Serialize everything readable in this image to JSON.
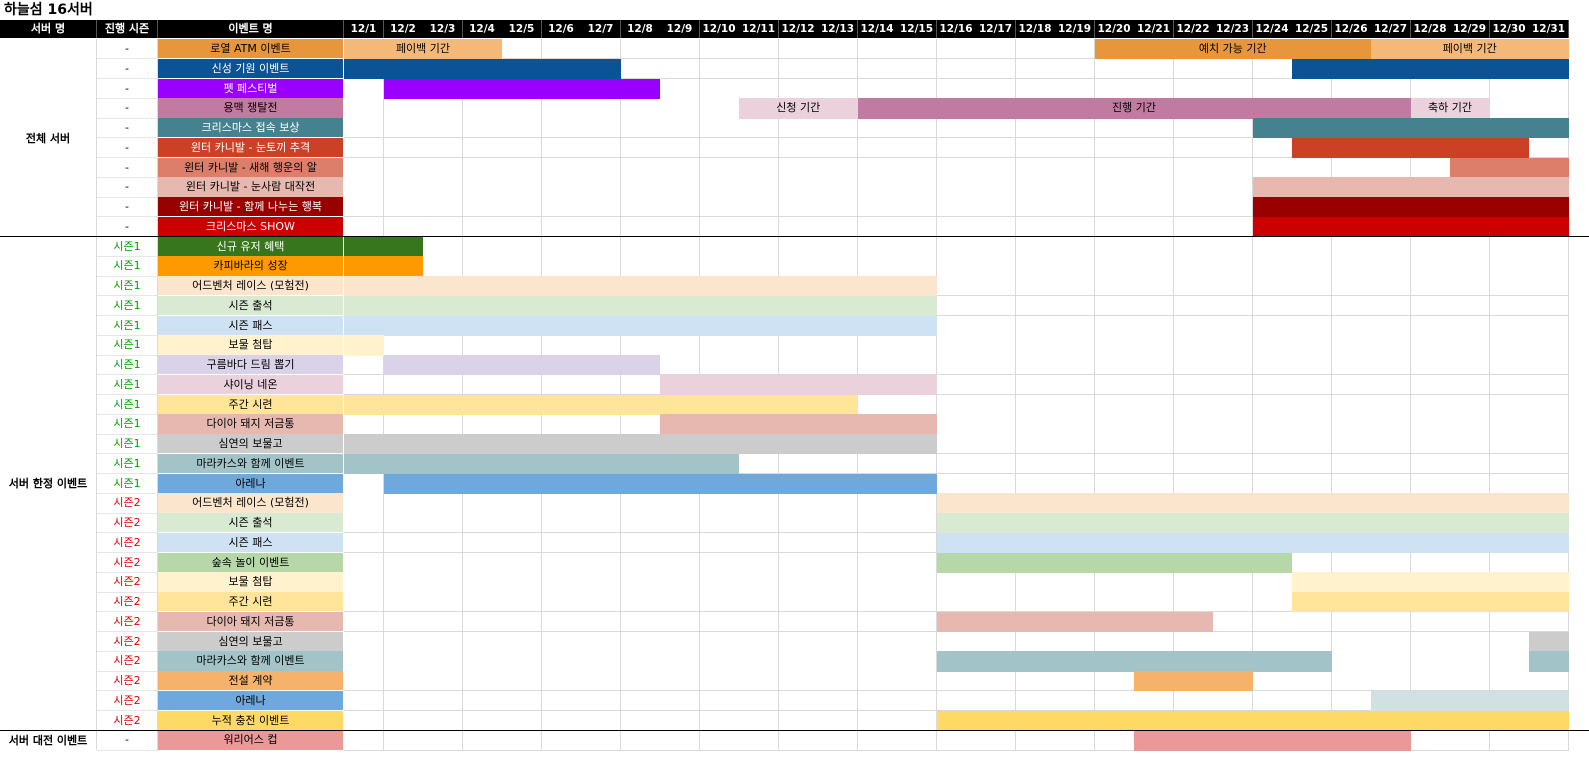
{
  "title": "하늘섬 16서버",
  "headers": {
    "server": "서버 명",
    "season": "진행 시즌",
    "event": "이벤트 명"
  },
  "dates": [
    "12/1",
    "12/2",
    "12/3",
    "12/4",
    "12/5",
    "12/6",
    "12/7",
    "12/8",
    "12/9",
    "12/10",
    "12/11",
    "12/12",
    "12/13",
    "12/14",
    "12/15",
    "12/16",
    "12/17",
    "12/18",
    "12/19",
    "12/20",
    "12/21",
    "12/22",
    "12/23",
    "12/24",
    "12/25",
    "12/26",
    "12/27",
    "12/28",
    "12/29",
    "12/30",
    "12/31"
  ],
  "groups": [
    {
      "label": "전체 서버",
      "first": 0,
      "last": 9
    },
    {
      "label": "서버 한정 이벤트",
      "first": 10,
      "last": 34
    },
    {
      "label": "서버 대전 이벤트",
      "first": 35,
      "last": 35
    }
  ],
  "season_colors": {
    "시즌1": "#00a000",
    "시즌2": "#e00000",
    "-": "#000000"
  },
  "rows": [
    {
      "season": "-",
      "name": "로열 ATM 이벤트",
      "color": "#e8963c",
      "text": "#000",
      "bars": [
        {
          "start": 1,
          "end": 4,
          "color": "#f4b979",
          "label": "페이백 기간"
        },
        {
          "start": 20,
          "end": 26,
          "color": "#e8963c",
          "label": "예치 가능 기간"
        },
        {
          "start": 27,
          "end": 31,
          "color": "#f4b979",
          "label": "페이백 기간"
        }
      ]
    },
    {
      "season": "-",
      "name": "신성 기원 이벤트",
      "color": "#0b5394",
      "text": "#fff",
      "bars": [
        {
          "start": 1,
          "end": 7,
          "color": "#0b5394",
          "label": ""
        },
        {
          "start": 25,
          "end": 31,
          "color": "#0b5394",
          "label": ""
        }
      ]
    },
    {
      "season": "-",
      "name": "펫 페스티벌",
      "color": "#9900ff",
      "text": "#fff",
      "bars": [
        {
          "start": 2,
          "end": 8,
          "color": "#9900ff",
          "label": ""
        }
      ]
    },
    {
      "season": "-",
      "name": "용맥 쟁탈전",
      "color": "#c27ba0",
      "text": "#000",
      "bars": [
        {
          "start": 11,
          "end": 13,
          "color": "#ead1dc",
          "label": "신청 기간"
        },
        {
          "start": 14,
          "end": 27,
          "color": "#c27ba0",
          "label": "진행 기간"
        },
        {
          "start": 28,
          "end": 29,
          "color": "#ead1dc",
          "label": "축하 기간"
        }
      ]
    },
    {
      "season": "-",
      "name": "크리스마스 접속 보상",
      "color": "#45818e",
      "text": "#fff",
      "bars": [
        {
          "start": 24,
          "end": 31,
          "color": "#45818e",
          "label": ""
        }
      ]
    },
    {
      "season": "-",
      "name": "윈터 카니발 - 눈토끼 추격",
      "color": "#cc4125",
      "text": "#fff",
      "bars": [
        {
          "start": 25,
          "end": 30,
          "color": "#cc4125",
          "label": ""
        }
      ]
    },
    {
      "season": "-",
      "name": "윈터 카니발 - 새해 행운의 알",
      "color": "#dd7e6b",
      "text": "#000",
      "bars": [
        {
          "start": 29,
          "end": 31,
          "color": "#dd7e6b",
          "label": ""
        }
      ]
    },
    {
      "season": "-",
      "name": "윈터 카니발 - 눈사람 대작전",
      "color": "#e6b8af",
      "text": "#000",
      "bars": [
        {
          "start": 24,
          "end": 31,
          "color": "#e6b8af",
          "label": ""
        }
      ]
    },
    {
      "season": "-",
      "name": "윈터 카니발 - 함께 나누는 행복",
      "color": "#990000",
      "text": "#fff",
      "bars": [
        {
          "start": 24,
          "end": 31,
          "color": "#990000",
          "label": ""
        }
      ]
    },
    {
      "season": "-",
      "name": "크리스마스 SHOW",
      "color": "#cc0000",
      "text": "#fff",
      "bars": [
        {
          "start": 24,
          "end": 31,
          "color": "#cc0000",
          "label": ""
        }
      ]
    },
    {
      "season": "시즌1",
      "name": "신규 유저 혜택",
      "color": "#38761d",
      "text": "#fff",
      "bars": [
        {
          "start": 1,
          "end": 2,
          "color": "#38761d",
          "label": ""
        }
      ]
    },
    {
      "season": "시즌1",
      "name": "카피바라의 성장",
      "color": "#ff9900",
      "text": "#000",
      "bars": [
        {
          "start": 1,
          "end": 2,
          "color": "#ff9900",
          "label": ""
        }
      ]
    },
    {
      "season": "시즌1",
      "name": "어드벤처 레이스 (모험전)",
      "color": "#fce5cd",
      "text": "#000",
      "bars": [
        {
          "start": 1,
          "end": 15,
          "color": "#fce5cd",
          "label": ""
        }
      ]
    },
    {
      "season": "시즌1",
      "name": "시즌 출석",
      "color": "#d9ead3",
      "text": "#000",
      "bars": [
        {
          "start": 1,
          "end": 15,
          "color": "#d9ead3",
          "label": ""
        }
      ]
    },
    {
      "season": "시즌1",
      "name": "시즌 패스",
      "color": "#cfe2f3",
      "text": "#000",
      "bars": [
        {
          "start": 1,
          "end": 15,
          "color": "#cfe2f3",
          "label": ""
        }
      ]
    },
    {
      "season": "시즌1",
      "name": "보물 첨탑",
      "color": "#fff2cc",
      "text": "#000",
      "bars": [
        {
          "start": 1,
          "end": 1,
          "color": "#fff2cc",
          "label": ""
        }
      ]
    },
    {
      "season": "시즌1",
      "name": "구름바다 드림 뽑기",
      "color": "#d9d2e9",
      "text": "#000",
      "bars": [
        {
          "start": 2,
          "end": 8,
          "color": "#d9d2e9",
          "label": ""
        }
      ]
    },
    {
      "season": "시즌1",
      "name": "샤이닝 네온",
      "color": "#ead1dc",
      "text": "#000",
      "bars": [
        {
          "start": 9,
          "end": 15,
          "color": "#ead1dc",
          "label": ""
        }
      ]
    },
    {
      "season": "시즌1",
      "name": "주간 시련",
      "color": "#ffe599",
      "text": "#000",
      "bars": [
        {
          "start": 1,
          "end": 13,
          "color": "#ffe599",
          "label": ""
        }
      ]
    },
    {
      "season": "시즌1",
      "name": "다이아 돼지 저금통",
      "color": "#e6b8af",
      "text": "#000",
      "bars": [
        {
          "start": 9,
          "end": 15,
          "color": "#e6b8af",
          "label": ""
        }
      ]
    },
    {
      "season": "시즌1",
      "name": "심연의 보물고",
      "color": "#cccccc",
      "text": "#000",
      "bars": [
        {
          "start": 1,
          "end": 15,
          "color": "#cccccc",
          "label": ""
        }
      ]
    },
    {
      "season": "시즌1",
      "name": "마라카스와 함께 이벤트",
      "color": "#a2c4c9",
      "text": "#000",
      "bars": [
        {
          "start": 1,
          "end": 10,
          "color": "#a2c4c9",
          "label": ""
        }
      ]
    },
    {
      "season": "시즌1",
      "name": "아레나",
      "color": "#6fa8dc",
      "text": "#000",
      "bars": [
        {
          "start": 2,
          "end": 15,
          "color": "#6fa8dc",
          "label": ""
        }
      ]
    },
    {
      "season": "시즌2",
      "name": "어드벤처 레이스 (모험전)",
      "color": "#fce5cd",
      "text": "#000",
      "bars": [
        {
          "start": 16,
          "end": 31,
          "color": "#fce5cd",
          "label": ""
        }
      ]
    },
    {
      "season": "시즌2",
      "name": "시즌 출석",
      "color": "#d9ead3",
      "text": "#000",
      "bars": [
        {
          "start": 16,
          "end": 31,
          "color": "#d9ead3",
          "label": ""
        }
      ]
    },
    {
      "season": "시즌2",
      "name": "시즌 패스",
      "color": "#cfe2f3",
      "text": "#000",
      "bars": [
        {
          "start": 16,
          "end": 31,
          "color": "#cfe2f3",
          "label": ""
        }
      ]
    },
    {
      "season": "시즌2",
      "name": "숲속 놀이 이벤트",
      "color": "#b6d7a8",
      "text": "#000",
      "bars": [
        {
          "start": 16,
          "end": 24,
          "color": "#b6d7a8",
          "label": ""
        }
      ]
    },
    {
      "season": "시즌2",
      "name": "보물 첨탑",
      "color": "#fff2cc",
      "text": "#000",
      "bars": [
        {
          "start": 25,
          "end": 31,
          "color": "#fff2cc",
          "label": ""
        }
      ]
    },
    {
      "season": "시즌2",
      "name": "주간 시련",
      "color": "#ffe599",
      "text": "#000",
      "bars": [
        {
          "start": 25,
          "end": 31,
          "color": "#ffe599",
          "label": ""
        }
      ]
    },
    {
      "season": "시즌2",
      "name": "다이아 돼지 저금통",
      "color": "#e6b8af",
      "text": "#000",
      "bars": [
        {
          "start": 16,
          "end": 22,
          "color": "#e6b8af",
          "label": ""
        }
      ]
    },
    {
      "season": "시즌2",
      "name": "심연의 보물고",
      "color": "#cccccc",
      "text": "#000",
      "bars": [
        {
          "start": 31,
          "end": 31,
          "color": "#cccccc",
          "label": ""
        }
      ]
    },
    {
      "season": "시즌2",
      "name": "마라카스와 함께 이벤트",
      "color": "#a2c4c9",
      "text": "#000",
      "bars": [
        {
          "start": 16,
          "end": 25,
          "color": "#a2c4c9",
          "label": ""
        },
        {
          "start": 31,
          "end": 31,
          "color": "#a2c4c9",
          "label": ""
        }
      ]
    },
    {
      "season": "시즌2",
      "name": "전설 계약",
      "color": "#f6b26b",
      "text": "#000",
      "bars": [
        {
          "start": 21,
          "end": 23,
          "color": "#f6b26b",
          "label": ""
        }
      ]
    },
    {
      "season": "시즌2",
      "name": "아레나",
      "color": "#6fa8dc",
      "text": "#000",
      "bars": [
        {
          "start": 27,
          "end": 31,
          "color": "#d0e0e3",
          "label": ""
        }
      ]
    },
    {
      "season": "시즌2",
      "name": "누적 충전 이벤트",
      "color": "#ffd966",
      "text": "#000",
      "bars": [
        {
          "start": 16,
          "end": 31,
          "color": "#ffd966",
          "label": ""
        }
      ]
    },
    {
      "season": "-",
      "name": "워리어스 컵",
      "color": "#ea9999",
      "text": "#000",
      "bars": [
        {
          "start": 21,
          "end": 27,
          "color": "#ea9999",
          "label": ""
        }
      ]
    }
  ]
}
